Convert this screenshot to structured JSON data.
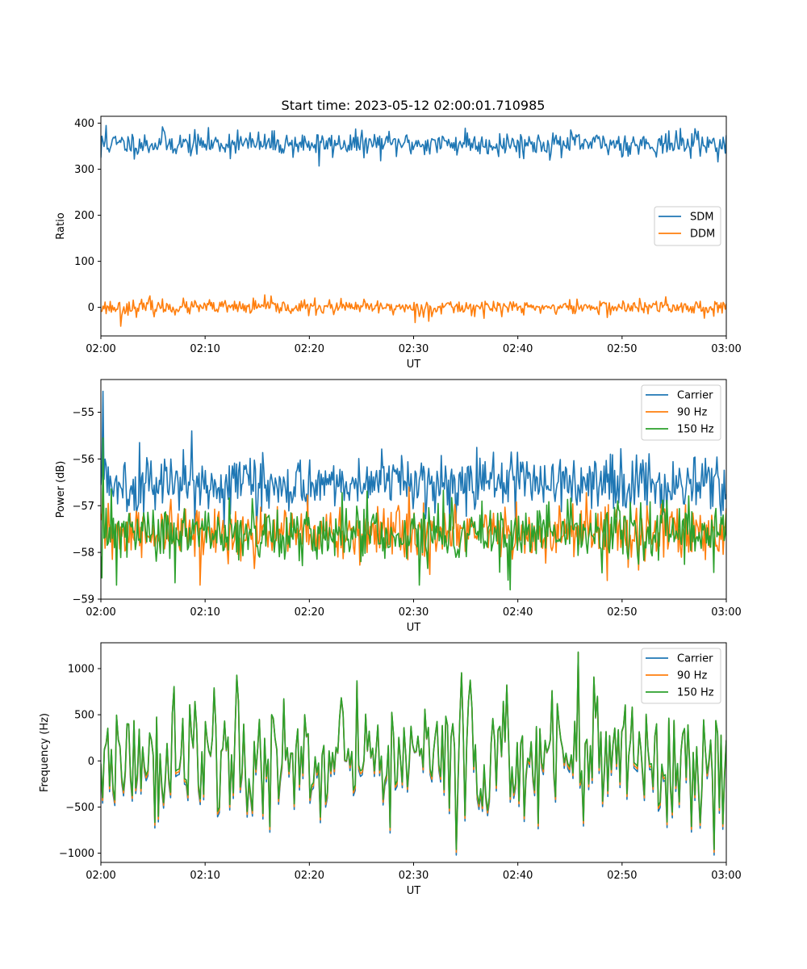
{
  "figure": {
    "title": "Start time: 2023-05-12 02:00:01.710985"
  },
  "chart_data": [
    {
      "type": "line",
      "xlabel": "UT",
      "ylabel": "Ratio",
      "xlim": [
        "02:00",
        "03:00"
      ],
      "ylim": [
        -62,
        415
      ],
      "xticks": [
        "02:00",
        "02:10",
        "02:20",
        "02:30",
        "02:40",
        "02:50",
        "03:00"
      ],
      "yticks": [
        0,
        100,
        200,
        300,
        400
      ],
      "ytick_labels": [
        "0",
        "100",
        "200",
        "300",
        "400"
      ],
      "legend": "center-right",
      "grid": false,
      "series": [
        {
          "name": "SDM",
          "color": "#1f77b4",
          "generator": {
            "kind": "noise",
            "mean": 355,
            "amp": 13,
            "n": 600,
            "seed": 11,
            "spikes": [
              [
                0.009,
                395
              ],
              [
                0.099,
                392
              ],
              [
                0.219,
                385
              ],
              [
                0.349,
                307
              ],
              [
                0.583,
                389
              ],
              [
                0.95,
                388
              ],
              [
                0.0,
                325
              ]
            ]
          }
        },
        {
          "name": "DDM",
          "color": "#ff7f0e",
          "generator": {
            "kind": "noise",
            "mean": 0,
            "amp": 8,
            "n": 600,
            "seed": 23,
            "spikes": [
              [
                0.031,
                -41
              ],
              [
                0.079,
                25
              ],
              [
                0.262,
                27
              ],
              [
                0.502,
                -33
              ],
              [
                0.525,
                -30
              ],
              [
                0.904,
                23
              ]
            ]
          }
        }
      ]
    },
    {
      "type": "line",
      "xlabel": "UT",
      "ylabel": "Power (dB)",
      "xlim": [
        "02:00",
        "03:00"
      ],
      "ylim": [
        -59,
        -54.3
      ],
      "xticks": [
        "02:00",
        "02:10",
        "02:20",
        "02:30",
        "02:40",
        "02:50",
        "03:00"
      ],
      "yticks": [
        -59,
        -58,
        -57,
        -56,
        -55
      ],
      "ytick_labels": [
        "−59",
        "−58",
        "−57",
        "−56",
        "−55"
      ],
      "legend": "top-right",
      "grid": false,
      "series": [
        {
          "name": "Carrier",
          "color": "#1f77b4",
          "generator": {
            "kind": "noise",
            "mean": -56.5,
            "amp": 0.3,
            "n": 600,
            "seed": 5,
            "spikes": [
              [
                0.003,
                -54.55
              ],
              [
                0.061,
                -55.65
              ],
              [
                0.145,
                -55.4
              ],
              [
                0.248,
                -57.5
              ]
            ]
          }
        },
        {
          "name": "90 Hz",
          "color": "#ff7f0e",
          "generator": {
            "kind": "noise",
            "mean": -57.6,
            "amp": 0.3,
            "n": 600,
            "seed": 31,
            "spikes": [
              [
                0.004,
                -56.4
              ],
              [
                0.158,
                -58.7
              ],
              [
                0.493,
                -56.6
              ],
              [
                0.81,
                -58.6
              ]
            ]
          }
        },
        {
          "name": "150 Hz",
          "color": "#2ca02c",
          "generator": {
            "kind": "noise",
            "mean": -57.6,
            "amp": 0.3,
            "n": 600,
            "seed": 47,
            "spikes": [
              [
                0.004,
                -55.55
              ],
              [
                0.025,
                -58.7
              ],
              [
                0.118,
                -58.65
              ],
              [
                0.51,
                -58.7
              ],
              [
                0.654,
                -58.8
              ]
            ]
          }
        }
      ]
    },
    {
      "type": "line",
      "xlabel": "UT",
      "ylabel": "Frequency (Hz)",
      "xlim": [
        "02:00",
        "03:00"
      ],
      "ylim": [
        -1100,
        1280
      ],
      "xticks": [
        "02:00",
        "02:10",
        "02:20",
        "02:30",
        "02:40",
        "02:50",
        "03:00"
      ],
      "yticks": [
        -1000,
        -500,
        0,
        500,
        1000
      ],
      "ytick_labels": [
        "−1000",
        "−500",
        "0",
        "500",
        "1000"
      ],
      "legend": "top-right",
      "grid": false,
      "series": [
        {
          "name": "Carrier",
          "color": "#1f77b4",
          "generator": {
            "kind": "freq",
            "offset": -60,
            "n": 360,
            "seed": 77
          }
        },
        {
          "name": "90 Hz",
          "color": "#ff7f0e",
          "generator": {
            "kind": "freq",
            "offset": -30,
            "n": 360,
            "seed": 77
          }
        },
        {
          "name": "150 Hz",
          "color": "#2ca02c",
          "generator": {
            "kind": "freq",
            "offset": 0,
            "n": 360,
            "seed": 77
          }
        }
      ]
    }
  ]
}
